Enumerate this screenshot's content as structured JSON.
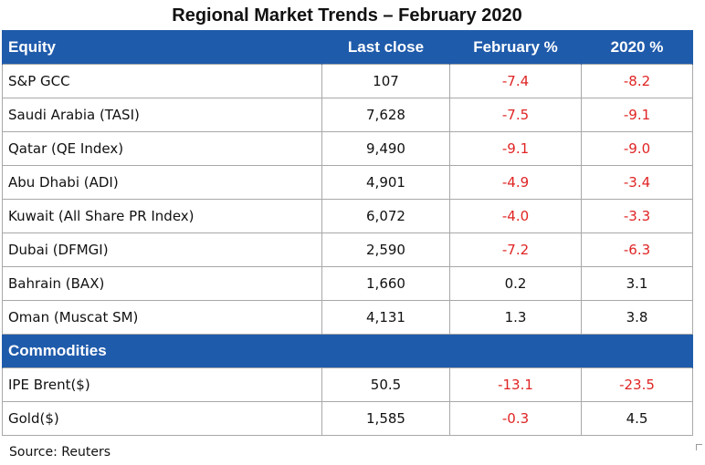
{
  "title": "Regional Market Trends – February 2020",
  "columns": [
    "Equity",
    "Last close",
    "February %",
    "2020 %"
  ],
  "equity_rows": [
    {
      "name": "S&P GCC",
      "last_close": "107",
      "feb": "-7.4",
      "ytd": "-8.2"
    },
    {
      "name": "Saudi Arabia (TASI)",
      "last_close": "7,628",
      "feb": "-7.5",
      "ytd": "-9.1"
    },
    {
      "name": "Qatar (QE Index)",
      "last_close": "9,490",
      "feb": "-9.1",
      "ytd": "-9.0"
    },
    {
      "name": "Abu Dhabi (ADI)",
      "last_close": "4,901",
      "feb": "-4.9",
      "ytd": "-3.4"
    },
    {
      "name": "Kuwait (All Share PR Index)",
      "last_close": "6,072",
      "feb": "-4.0",
      "ytd": "-3.3"
    },
    {
      "name": "Dubai (DFMGI)",
      "last_close": "2,590",
      "feb": "-7.2",
      "ytd": "-6.3"
    },
    {
      "name": "Bahrain (BAX)",
      "last_close": "1,660",
      "feb": "0.2",
      "ytd": "3.1"
    },
    {
      "name": "Oman (Muscat SM)",
      "last_close": "4,131",
      "feb": "1.3",
      "ytd": "3.8"
    }
  ],
  "commodities_label": "Commodities",
  "commodity_rows": [
    {
      "name": "IPE Brent($)",
      "last_close": "50.5",
      "feb": "-13.1",
      "ytd": "-23.5"
    },
    {
      "name": "Gold($)",
      "last_close": "1,585",
      "feb": "-0.3",
      "ytd": "4.5"
    }
  ],
  "source": "Source: Reuters",
  "colors": {
    "header_bg": "#1f5bab",
    "negative": "#e02424",
    "border": "#a8a8a8"
  }
}
